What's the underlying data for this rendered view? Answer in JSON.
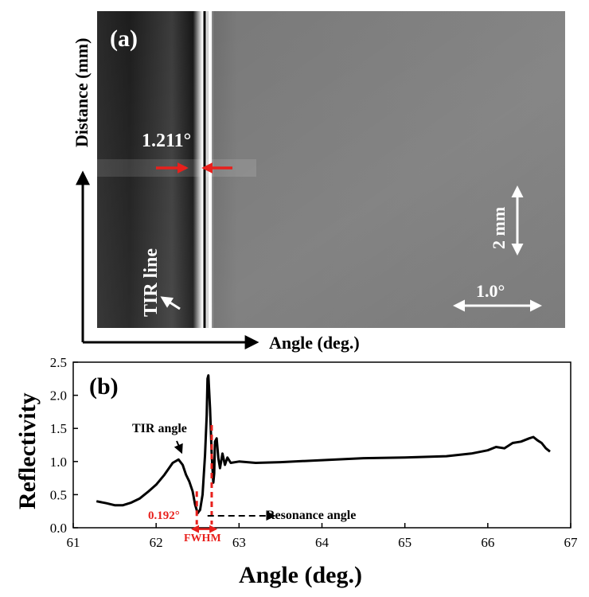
{
  "panel_a": {
    "label": "(a)",
    "y_axis_label": "Distance (mm)",
    "x_axis_label": "Angle (deg.)",
    "width_annotation": "1.211°",
    "tir_label": "TIR line",
    "scale_vertical": "2 mm",
    "scale_horizontal": "1.0°",
    "colors": {
      "arrow_red": "#e8201c",
      "annotation": "#ffffff",
      "axis": "#000000"
    }
  },
  "chart_data": {
    "type": "line",
    "title": "(b)",
    "xlabel": "Angle (deg.)",
    "ylabel": "Reflectivity",
    "xlim": [
      61,
      67
    ],
    "ylim": [
      0.0,
      2.5
    ],
    "x_ticks": [
      "61",
      "62",
      "63",
      "64",
      "65",
      "66",
      "67"
    ],
    "y_ticks": [
      "0.0",
      "0.5",
      "1.0",
      "1.5",
      "2.0",
      "2.5"
    ],
    "grid": false,
    "series": [
      {
        "color": "#000000",
        "x": [
          61.28,
          61.4,
          61.5,
          61.6,
          61.7,
          61.8,
          61.9,
          62.0,
          62.1,
          62.2,
          62.27,
          62.32,
          62.36,
          62.4,
          62.44,
          62.47,
          62.5,
          62.53,
          62.56,
          62.59,
          62.61,
          62.62,
          62.63,
          62.65,
          62.67,
          62.69,
          62.7,
          62.71,
          62.73,
          62.75,
          62.77,
          62.8,
          62.83,
          62.86,
          62.9,
          63.0,
          63.2,
          63.5,
          64.0,
          64.5,
          65.0,
          65.5,
          65.8,
          66.0,
          66.1,
          66.2,
          66.3,
          66.4,
          66.5,
          66.55,
          66.6,
          66.65,
          66.7,
          66.75
        ],
        "y": [
          0.4,
          0.37,
          0.34,
          0.34,
          0.38,
          0.44,
          0.54,
          0.65,
          0.8,
          0.98,
          1.03,
          0.95,
          0.8,
          0.7,
          0.55,
          0.35,
          0.22,
          0.27,
          0.5,
          1.1,
          1.7,
          2.25,
          2.3,
          1.8,
          1.1,
          0.68,
          0.82,
          1.3,
          1.35,
          1.05,
          0.9,
          1.12,
          0.95,
          1.06,
          0.98,
          1.0,
          0.98,
          0.99,
          1.02,
          1.05,
          1.06,
          1.08,
          1.12,
          1.17,
          1.22,
          1.2,
          1.28,
          1.3,
          1.35,
          1.37,
          1.32,
          1.28,
          1.2,
          1.15
        ]
      }
    ],
    "annotations": {
      "tir_angle": "TIR angle",
      "resonance_angle": "Resonance angle",
      "fwhm_value": "0.192°",
      "fwhm_label": "FWHM"
    },
    "highlight_color": "#e8201c"
  }
}
